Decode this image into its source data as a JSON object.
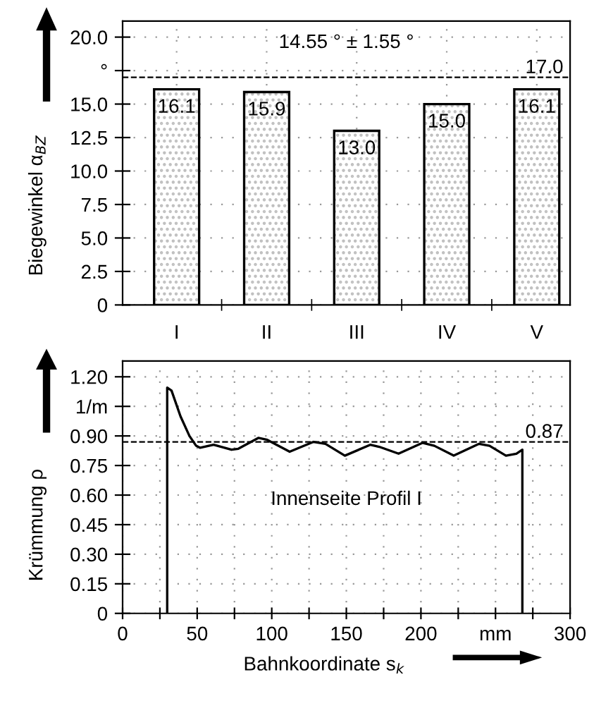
{
  "chart_data": [
    {
      "type": "bar",
      "ylabel": "Biegewinkel α$_{BZ}$",
      "categories": [
        "I",
        "II",
        "III",
        "IV",
        "V"
      ],
      "values": [
        16.1,
        15.9,
        13.0,
        15.0,
        16.1
      ],
      "color": "#000000",
      "value_labels": [
        "16.1",
        "15.9",
        "13.0",
        "15.0",
        "16.1"
      ],
      "ylim": [
        0,
        21.2
      ],
      "yticks": [
        0,
        2.5,
        {
          "value": 5,
          "label": "5.0"
        },
        7.5,
        {
          "value": 10,
          "label": "10.0"
        },
        12.5,
        {
          "value": 15,
          "label": "15.0"
        },
        {
          "value": 17.5,
          "label": "°"
        },
        {
          "value": 20,
          "label": "20.0"
        }
      ],
      "ref_lines": [
        {
          "axis": "y",
          "value": 17.0,
          "label": "17.0",
          "line_style": "dashed"
        }
      ],
      "annotations": [
        "14.55 ° ± 1.55 °"
      ],
      "grid": true
    },
    {
      "type": "line",
      "ylabel": "Krümmung ρ",
      "xlabel": "Bahnkoordinate s$_{k}$",
      "series": [
        {
          "color": "#000000",
          "x": [
            29.9,
            29.9,
            32.8,
            38.8,
            44.8,
            49.3,
            52,
            61,
            73,
            77.6,
            91,
            97,
            112,
            128,
            136,
            149,
            166,
            172,
            185,
            201,
            209,
            222,
            239,
            246,
            257,
            264,
            268,
            268
          ],
          "values": [
            0,
            1.145,
            1.13,
            1.0,
            0.9,
            0.85,
            0.84,
            0.855,
            0.83,
            0.835,
            0.89,
            0.88,
            0.82,
            0.87,
            0.86,
            0.8,
            0.855,
            0.845,
            0.81,
            0.865,
            0.85,
            0.8,
            0.86,
            0.85,
            0.8,
            0.81,
            0.83,
            0
          ]
        }
      ],
      "xlim": [
        0,
        300
      ],
      "xticks": [
        0,
        {
          "value": 25,
          "label": null
        },
        50,
        {
          "value": 75,
          "label": null
        },
        100,
        {
          "value": 125,
          "label": null
        },
        150,
        {
          "value": 175,
          "label": null
        },
        200,
        {
          "value": 225,
          "label": null
        },
        {
          "value": 250,
          "label": "mm"
        },
        {
          "value": 275,
          "label": null
        },
        300
      ],
      "ylim": [
        0,
        1.28
      ],
      "yticks": [
        0,
        0.15,
        {
          "value": 0.3,
          "label": "0.30"
        },
        0.45,
        {
          "value": 0.6,
          "label": "0.60"
        },
        0.75,
        {
          "value": 0.9,
          "label": "0.90"
        },
        {
          "value": 1.05,
          "label": "1/m"
        },
        {
          "value": 1.2,
          "label": "1.20"
        }
      ],
      "ref_lines": [
        {
          "axis": "y",
          "value": 0.87,
          "label": "0.87",
          "line_style": "dashed"
        }
      ],
      "annotations": [
        "Innenseite Profil I"
      ],
      "grid": true,
      "line_style": "solid",
      "marker": "none"
    }
  ]
}
